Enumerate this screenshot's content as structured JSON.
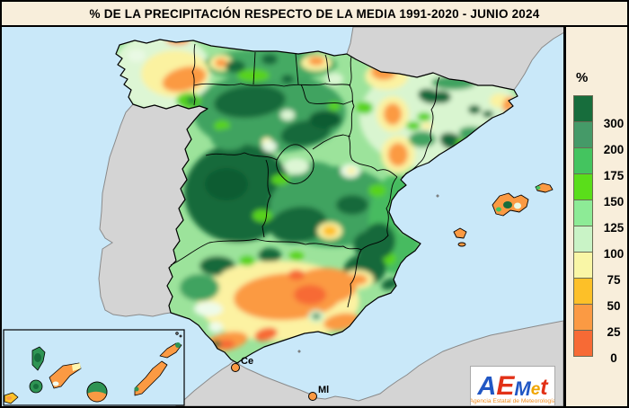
{
  "title": "% DE LA PRECIPITACIÓN RESPECTO DE LA MEDIA 1991-2020 - JUNIO 2024",
  "legend": {
    "unit_label": "%",
    "stops": [
      {
        "color": "#176d3c",
        "label": "300"
      },
      {
        "color": "#459a68",
        "label": "200"
      },
      {
        "color": "#44c45f",
        "label": "175"
      },
      {
        "color": "#5ade1a",
        "label": "150"
      },
      {
        "color": "#8deb96",
        "label": "125"
      },
      {
        "color": "#c9f3c6",
        "label": "100"
      },
      {
        "color": "#f9f6a6",
        "label": "75"
      },
      {
        "color": "#fdc028",
        "label": "50"
      },
      {
        "color": "#fb9a43",
        "label": "25"
      },
      {
        "color": "#f76a35",
        "label": "0"
      }
    ]
  },
  "map": {
    "sea_color": "#c9e8f9",
    "noncoverage_land_color": "#d4d4d4",
    "city_labels": [
      {
        "id": "ceuta",
        "label": "Ce"
      },
      {
        "id": "melilla",
        "label": "Ml"
      }
    ]
  },
  "logo": {
    "letters": [
      {
        "char": "A",
        "color": "#2157c4",
        "size": 29
      },
      {
        "char": "E",
        "color": "#e23117",
        "size": 30
      },
      {
        "char": "M",
        "color": "#2157c4",
        "size": 22
      },
      {
        "char": "e",
        "color": "#f0a500",
        "size": 19
      },
      {
        "char": "t",
        "color": "#e23117",
        "size": 25
      }
    ],
    "subtitle": "Agencia Estatal de Meteorología",
    "subtitle_color": "#f08c1e"
  }
}
